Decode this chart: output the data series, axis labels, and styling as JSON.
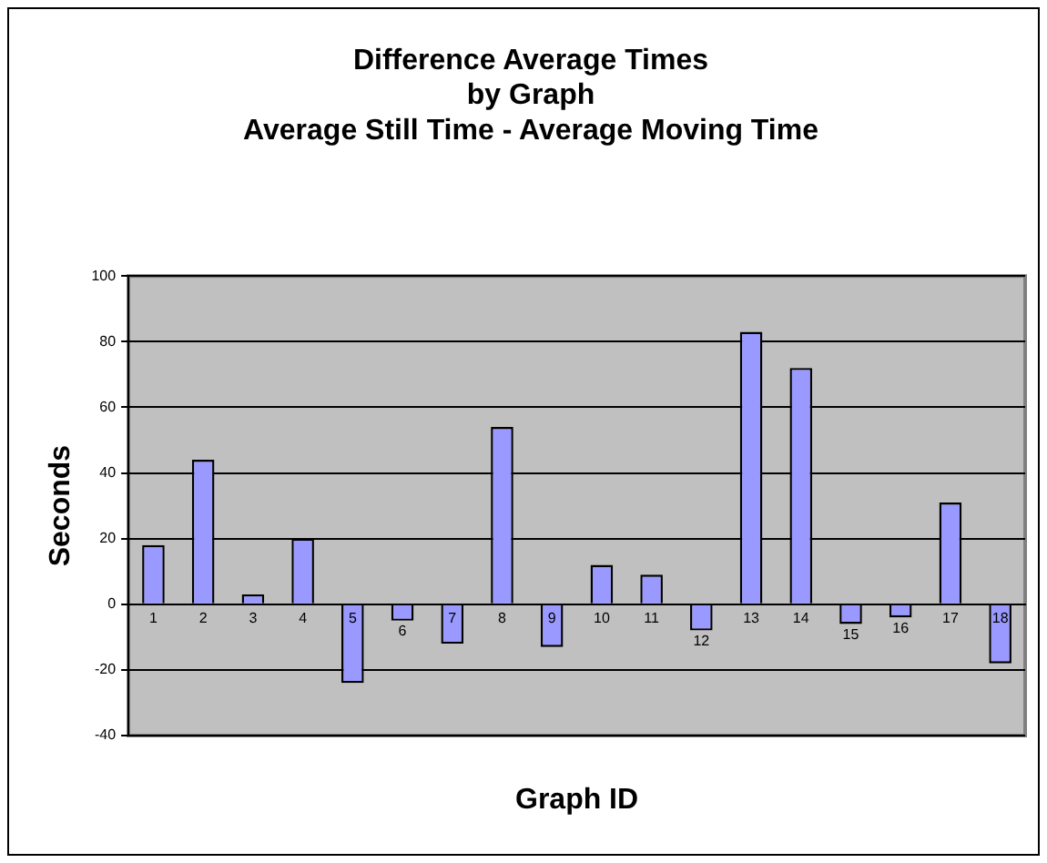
{
  "chart_data": {
    "type": "bar",
    "title": "Difference Average Times\nby Graph\nAverage Still Time - Average Moving Time",
    "xlabel": "Graph ID",
    "ylabel": "Seconds",
    "categories": [
      "1",
      "2",
      "3",
      "4",
      "5",
      "6",
      "7",
      "8",
      "9",
      "10",
      "11",
      "12",
      "13",
      "14",
      "15",
      "16",
      "17",
      "18"
    ],
    "values": [
      18,
      44,
      3,
      20,
      -24,
      -5,
      -12,
      54,
      -13,
      12,
      9,
      -8,
      83,
      72,
      -6,
      -4,
      31,
      -18
    ],
    "color": "#9999ff",
    "ylim": [
      -40,
      100
    ],
    "yticks": [
      -40,
      -20,
      0,
      20,
      40,
      60,
      80,
      100
    ],
    "grid": "y",
    "legend": false
  }
}
